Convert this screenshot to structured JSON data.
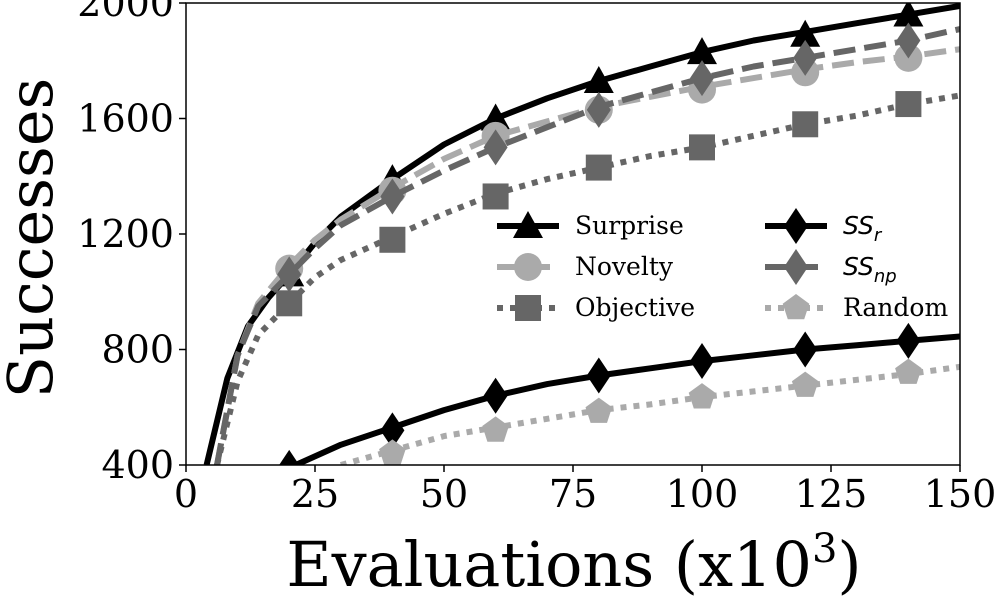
{
  "chart_data": {
    "type": "line",
    "xlabel_main": "Evaluations (x10",
    "xlabel_sup": "3",
    "xlabel_close": ")",
    "ylabel": "Successes",
    "xlim": [
      0,
      150
    ],
    "ylim": [
      400,
      2000
    ],
    "xticks": [
      "0",
      "25",
      "50",
      "75",
      "100",
      "125",
      "150"
    ],
    "yticks": [
      "400",
      "800",
      "1200",
      "1600",
      "2000"
    ],
    "grid": false,
    "legend_position": "center-right",
    "series": [
      {
        "name": "Surprise",
        "color": "#000000",
        "dash": "solid",
        "marker": "triangle",
        "x": [
          4,
          8,
          12,
          16,
          20,
          25,
          30,
          40,
          50,
          60,
          70,
          80,
          90,
          100,
          110,
          120,
          130,
          140,
          150
        ],
        "y": [
          400,
          700,
          880,
          980,
          1060,
          1170,
          1260,
          1390,
          1510,
          1600,
          1670,
          1730,
          1780,
          1830,
          1870,
          1900,
          1930,
          1960,
          1990
        ],
        "marker_x": [
          20,
          40,
          60,
          80,
          100,
          120,
          140
        ],
        "marker_y": [
          1060,
          1390,
          1600,
          1730,
          1830,
          1890,
          1960
        ]
      },
      {
        "name": "Novelty",
        "color": "#aaaaaa",
        "dash": "dashed",
        "marker": "circle",
        "x": [
          6,
          10,
          14,
          20,
          25,
          30,
          40,
          50,
          60,
          70,
          80,
          90,
          100,
          110,
          120,
          130,
          140,
          150
        ],
        "y": [
          400,
          780,
          960,
          1090,
          1180,
          1250,
          1360,
          1460,
          1540,
          1590,
          1640,
          1675,
          1710,
          1740,
          1770,
          1795,
          1815,
          1840
        ],
        "marker_x": [
          20,
          40,
          60,
          80,
          100,
          120,
          140
        ],
        "marker_y": [
          1080,
          1350,
          1540,
          1630,
          1700,
          1760,
          1810
        ]
      },
      {
        "name": "Objective",
        "color": "#666666",
        "dash": "dotted",
        "marker": "square",
        "x": [
          6,
          10,
          14,
          20,
          25,
          30,
          40,
          50,
          60,
          70,
          80,
          90,
          100,
          110,
          120,
          130,
          140,
          150
        ],
        "y": [
          400,
          690,
          850,
          960,
          1050,
          1110,
          1190,
          1270,
          1340,
          1390,
          1430,
          1470,
          1500,
          1540,
          1580,
          1610,
          1650,
          1680
        ],
        "marker_x": [
          20,
          40,
          60,
          80,
          100,
          120,
          140
        ],
        "marker_y": [
          960,
          1180,
          1330,
          1430,
          1500,
          1580,
          1650
        ]
      },
      {
        "name": "SS",
        "subscript": "r",
        "color": "#000000",
        "dash": "solid",
        "marker": "diamond",
        "x": [
          20,
          30,
          40,
          50,
          60,
          70,
          80,
          90,
          100,
          110,
          120,
          130,
          140,
          150
        ],
        "y": [
          390,
          470,
          530,
          590,
          640,
          680,
          710,
          735,
          760,
          780,
          800,
          815,
          830,
          845
        ],
        "marker_x": [
          20,
          40,
          60,
          80,
          100,
          120,
          140
        ],
        "marker_y": [
          390,
          520,
          640,
          710,
          760,
          800,
          830
        ]
      },
      {
        "name": "SS",
        "subscript": "np",
        "color": "#666666",
        "dash": "dashed",
        "marker": "diamond",
        "x": [
          6,
          10,
          14,
          20,
          25,
          30,
          40,
          50,
          60,
          70,
          80,
          90,
          100,
          110,
          120,
          130,
          140,
          150
        ],
        "y": [
          400,
          780,
          950,
          1060,
          1150,
          1230,
          1330,
          1420,
          1500,
          1570,
          1640,
          1690,
          1740,
          1780,
          1810,
          1840,
          1870,
          1910
        ],
        "marker_x": [
          20,
          40,
          60,
          80,
          100,
          120,
          140
        ],
        "marker_y": [
          1060,
          1330,
          1500,
          1630,
          1740,
          1810,
          1870
        ]
      },
      {
        "name": "Random",
        "color": "#aaaaaa",
        "dash": "dotted",
        "marker": "pentagon",
        "x": [
          30,
          40,
          50,
          60,
          70,
          80,
          90,
          100,
          110,
          120,
          130,
          140,
          150
        ],
        "y": [
          400,
          450,
          500,
          530,
          560,
          590,
          610,
          635,
          655,
          675,
          695,
          715,
          740
        ],
        "marker_x": [
          40,
          60,
          80,
          100,
          120,
          140
        ],
        "marker_y": [
          440,
          520,
          585,
          635,
          675,
          720
        ]
      }
    ]
  }
}
